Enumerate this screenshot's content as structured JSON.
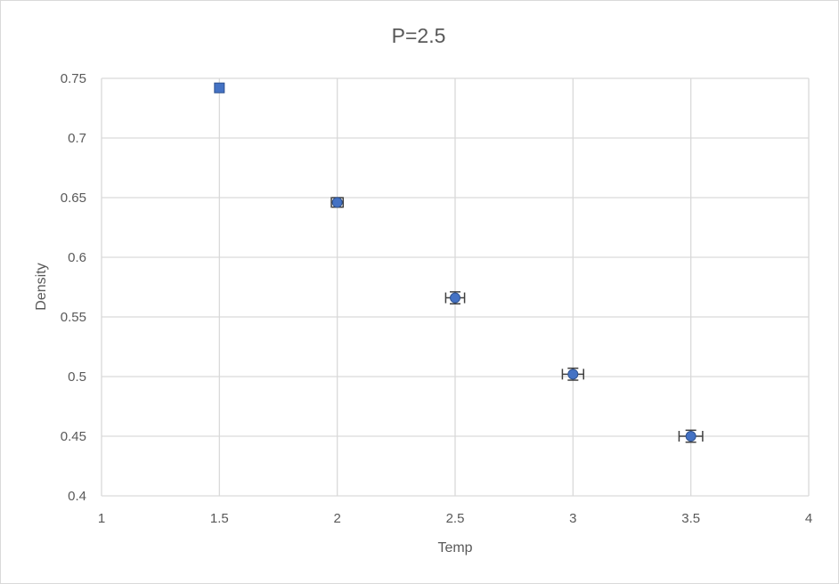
{
  "chart_data": {
    "type": "scatter",
    "title": "P=2.5",
    "xlabel": "Temp",
    "ylabel": "Density",
    "xlim": [
      1,
      4
    ],
    "ylim": [
      0.4,
      0.75
    ],
    "xticks": [
      "1",
      "1.5",
      "2",
      "2.5",
      "3",
      "3.5",
      "4"
    ],
    "yticks": [
      "0.4",
      "0.45",
      "0.5",
      "0.55",
      "0.6",
      "0.65",
      "0.7",
      "0.75"
    ],
    "grid": true,
    "marker_color": "#4472c4",
    "series": [
      {
        "points": [
          {
            "x": 1.5,
            "y": 0.742,
            "xerr": 0.0,
            "yerr": 0.0,
            "marker": "square"
          },
          {
            "x": 2.0,
            "y": 0.646,
            "xerr": 0.025,
            "yerr": 0.004,
            "marker": "circle"
          },
          {
            "x": 2.5,
            "y": 0.566,
            "xerr": 0.04,
            "yerr": 0.005,
            "marker": "circle"
          },
          {
            "x": 3.0,
            "y": 0.502,
            "xerr": 0.045,
            "yerr": 0.005,
            "marker": "circle"
          },
          {
            "x": 3.5,
            "y": 0.45,
            "xerr": 0.05,
            "yerr": 0.005,
            "marker": "circle"
          }
        ]
      }
    ]
  }
}
